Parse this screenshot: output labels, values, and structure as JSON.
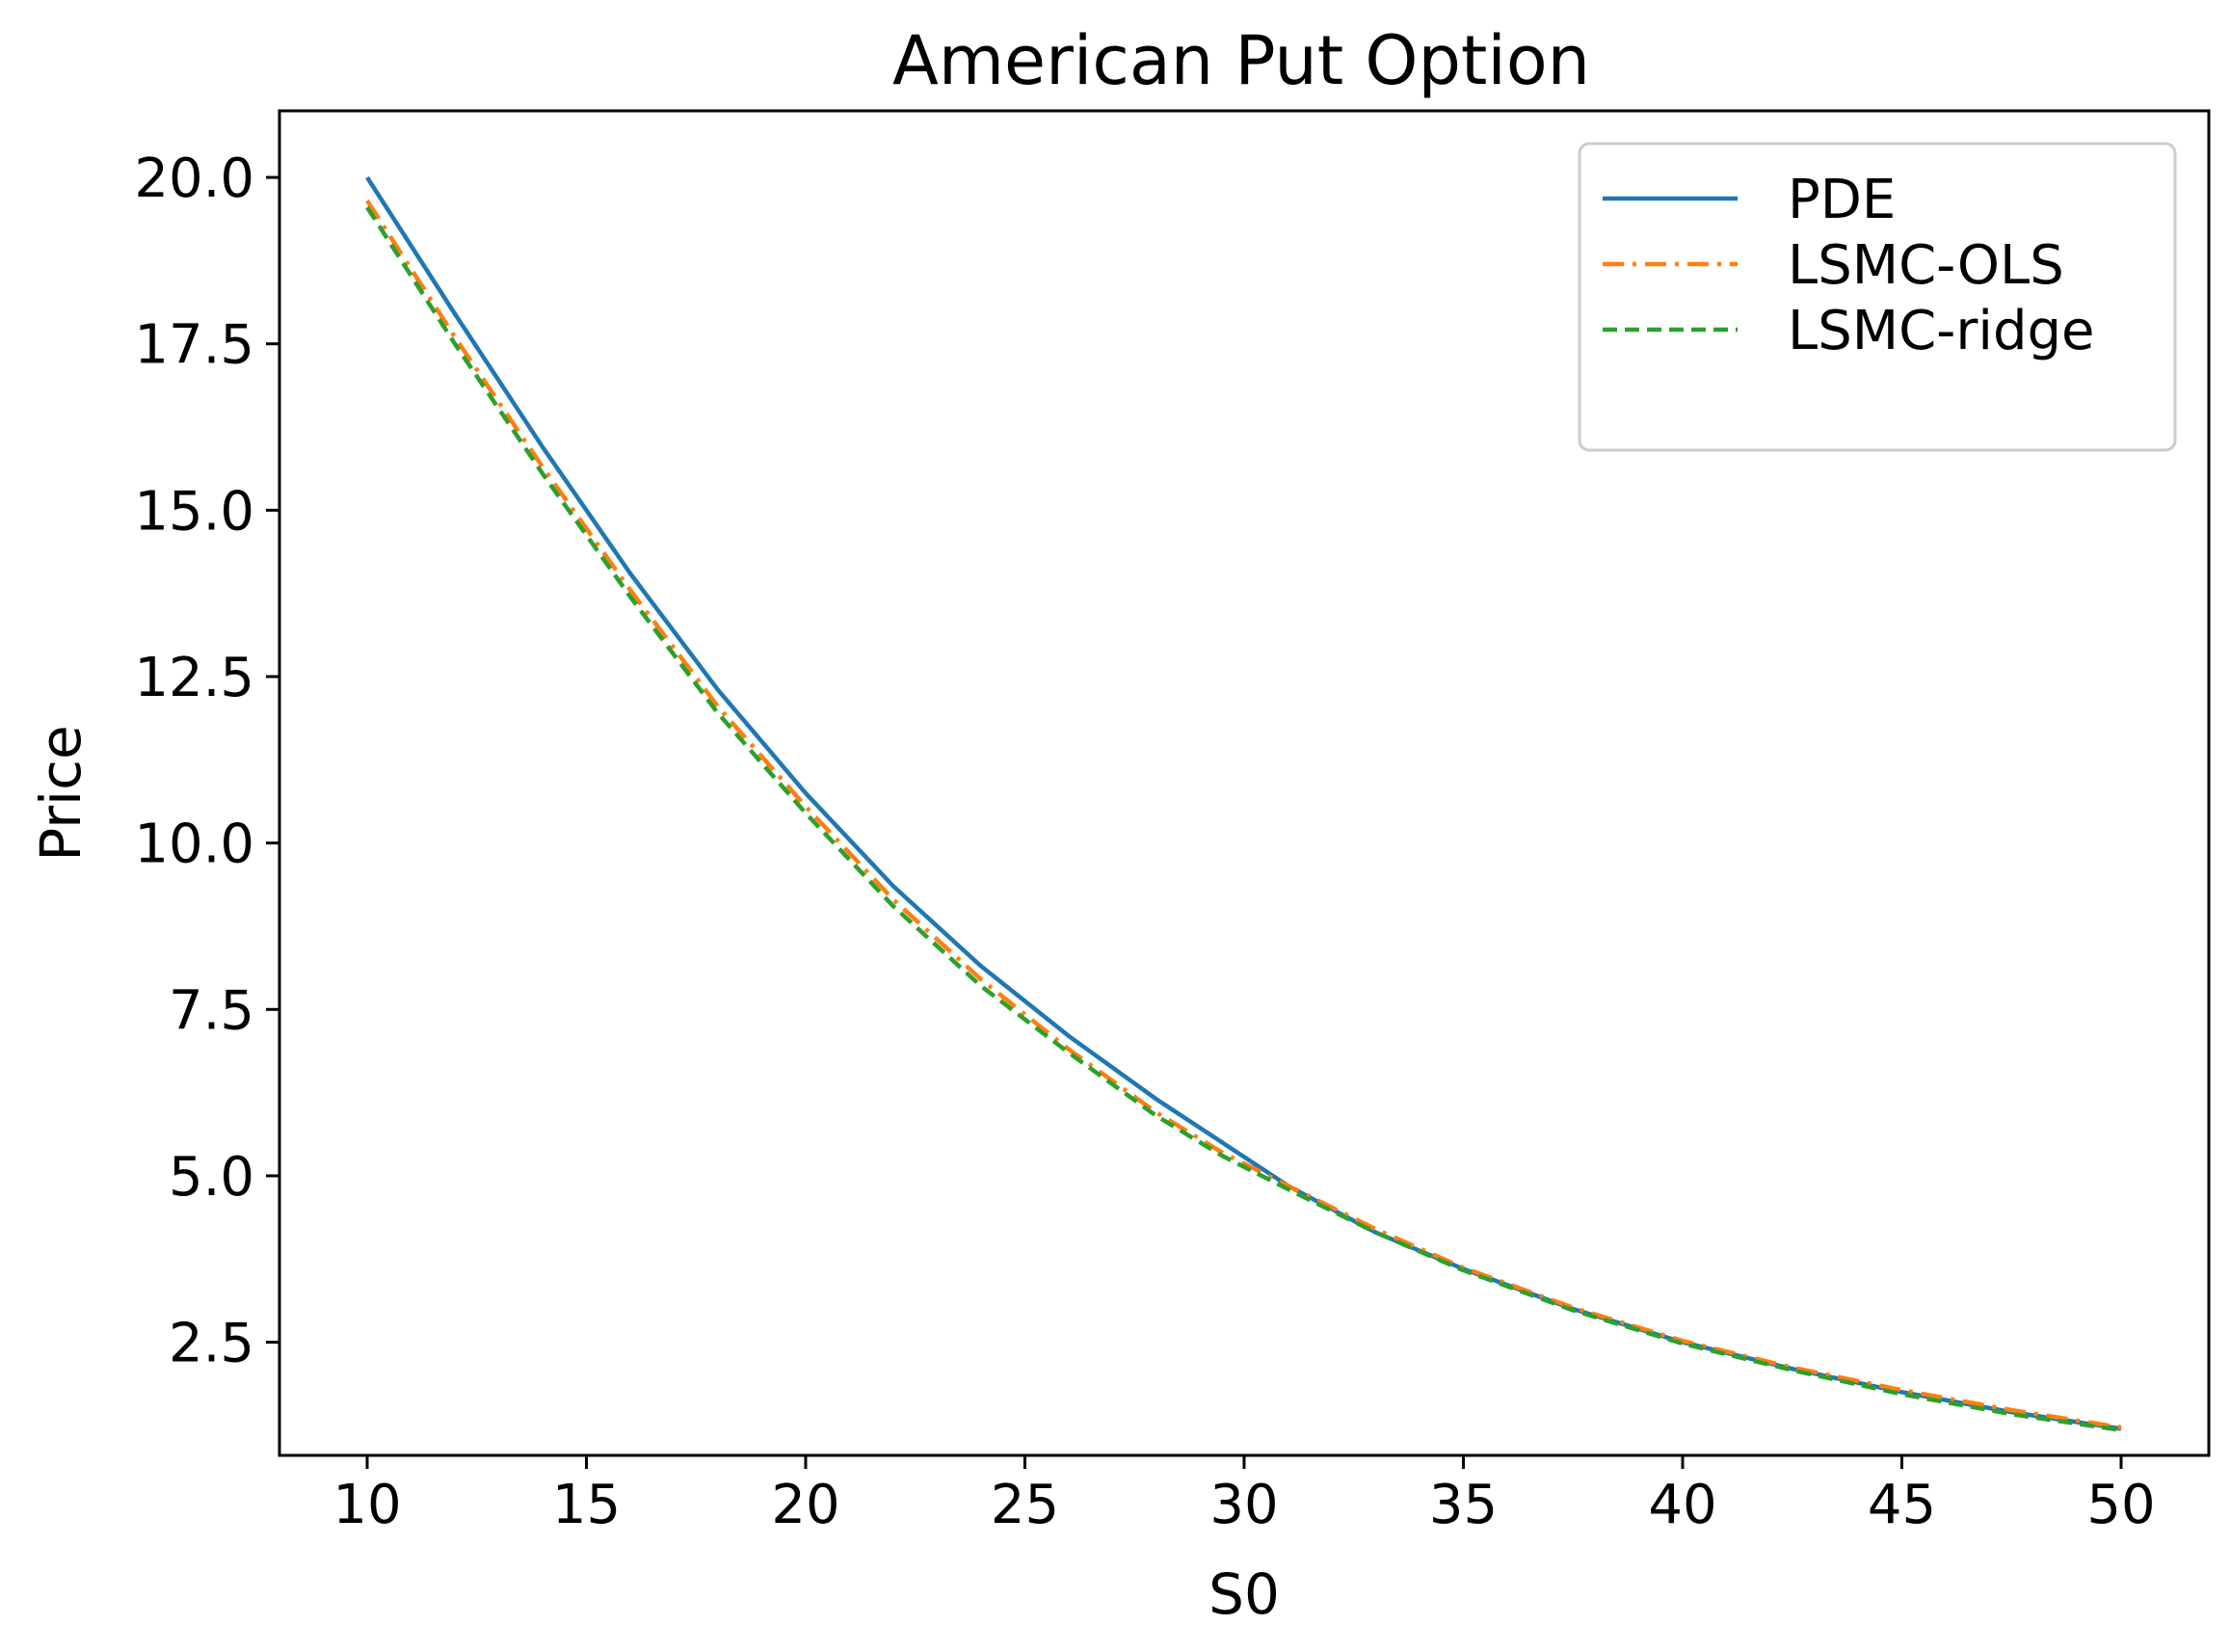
{
  "chart_data": {
    "type": "line",
    "title": "American Put Option",
    "xlabel": "S0",
    "ylabel": "Price",
    "xlim": [
      8,
      52
    ],
    "ylim": [
      0.8,
      21.0
    ],
    "xticks": [
      "10",
      "15",
      "20",
      "25",
      "30",
      "35",
      "40",
      "45",
      "50"
    ],
    "yticks": [
      "2.5",
      "5.0",
      "7.5",
      "10.0",
      "12.5",
      "15.0",
      "17.5",
      "20.0"
    ],
    "grid": false,
    "legend_position": "top-right",
    "x": [
      10,
      12,
      14,
      16,
      18,
      20,
      22,
      24,
      26,
      28,
      29.5,
      31,
      33,
      35,
      37.5,
      40,
      42.5,
      45,
      47.5,
      50
    ],
    "series": [
      {
        "name": "PDE",
        "color": "#1f77b4",
        "style": "solid",
        "values": [
          20.0,
          17.95,
          15.95,
          14.05,
          12.3,
          10.75,
          9.35,
          8.15,
          7.1,
          6.15,
          5.5,
          4.85,
          4.15,
          3.6,
          3.0,
          2.5,
          2.1,
          1.75,
          1.45,
          1.2
        ]
      },
      {
        "name": "LSMC-OLS",
        "color": "#ff7f0e",
        "style": "dashdot",
        "values": [
          19.65,
          17.6,
          15.65,
          13.8,
          12.05,
          10.55,
          9.15,
          7.95,
          6.9,
          5.95,
          5.35,
          4.85,
          4.2,
          3.62,
          3.02,
          2.52,
          2.12,
          1.78,
          1.48,
          1.22
        ]
      },
      {
        "name": "LSMC-ridge",
        "color": "#2ca02c",
        "style": "dashed",
        "values": [
          19.55,
          17.5,
          15.55,
          13.7,
          11.95,
          10.45,
          9.05,
          7.85,
          6.85,
          5.9,
          5.3,
          4.8,
          4.15,
          3.58,
          2.98,
          2.48,
          2.08,
          1.72,
          1.42,
          1.18
        ]
      }
    ]
  }
}
